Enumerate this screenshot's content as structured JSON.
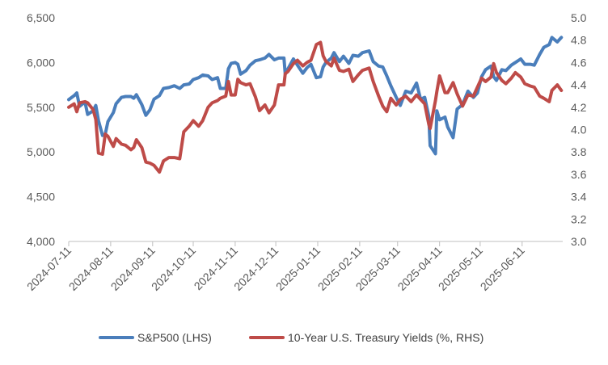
{
  "chart_data": {
    "type": "line",
    "title": "",
    "xlabel": "",
    "ylabel": "",
    "y2label": "",
    "x_ticks": [
      "2024-07-11",
      "2024-08-11",
      "2024-09-11",
      "2024-10-11",
      "2024-11-11",
      "2024-12-11",
      "2025-01-11",
      "2025-02-11",
      "2025-03-11",
      "2025-04-11",
      "2025-05-11",
      "2025-06-11"
    ],
    "ylim_left": [
      4000,
      6500
    ],
    "yticks_left": [
      "4,000",
      "4,500",
      "5,000",
      "5,500",
      "6,000",
      "6,500"
    ],
    "ylim_right": [
      3.0,
      5.0
    ],
    "yticks_right": [
      "3.0",
      "3.2",
      "3.4",
      "3.6",
      "3.8",
      "4.0",
      "4.2",
      "4.4",
      "4.6",
      "4.8",
      "5.0"
    ],
    "grid": false,
    "legend_position": "bottom",
    "series": [
      {
        "name": "S&P500 (LHS)",
        "axis": "left",
        "color": "#4a7ebb",
        "points": [
          [
            "2024-07-11",
            5585
          ],
          [
            "2024-07-15",
            5630
          ],
          [
            "2024-07-17",
            5660
          ],
          [
            "2024-07-19",
            5510
          ],
          [
            "2024-07-23",
            5560
          ],
          [
            "2024-07-25",
            5420
          ],
          [
            "2024-07-29",
            5460
          ],
          [
            "2024-07-31",
            5520
          ],
          [
            "2024-08-02",
            5350
          ],
          [
            "2024-08-05",
            5185
          ],
          [
            "2024-08-07",
            5200
          ],
          [
            "2024-08-09",
            5340
          ],
          [
            "2024-08-13",
            5440
          ],
          [
            "2024-08-15",
            5540
          ],
          [
            "2024-08-19",
            5610
          ],
          [
            "2024-08-22",
            5620
          ],
          [
            "2024-08-26",
            5620
          ],
          [
            "2024-08-28",
            5600
          ],
          [
            "2024-08-30",
            5640
          ],
          [
            "2024-09-03",
            5530
          ],
          [
            "2024-09-06",
            5410
          ],
          [
            "2024-09-09",
            5470
          ],
          [
            "2024-09-12",
            5590
          ],
          [
            "2024-09-16",
            5630
          ],
          [
            "2024-09-19",
            5710
          ],
          [
            "2024-09-23",
            5720
          ],
          [
            "2024-09-27",
            5740
          ],
          [
            "2024-10-01",
            5710
          ],
          [
            "2024-10-04",
            5750
          ],
          [
            "2024-10-08",
            5760
          ],
          [
            "2024-10-11",
            5810
          ],
          [
            "2024-10-15",
            5830
          ],
          [
            "2024-10-18",
            5860
          ],
          [
            "2024-10-22",
            5850
          ],
          [
            "2024-10-25",
            5810
          ],
          [
            "2024-10-29",
            5830
          ],
          [
            "2024-10-31",
            5710
          ],
          [
            "2024-11-04",
            5710
          ],
          [
            "2024-11-06",
            5930
          ],
          [
            "2024-11-08",
            5990
          ],
          [
            "2024-11-11",
            6000
          ],
          [
            "2024-11-13",
            5980
          ],
          [
            "2024-11-15",
            5870
          ],
          [
            "2024-11-19",
            5910
          ],
          [
            "2024-11-22",
            5970
          ],
          [
            "2024-11-26",
            6020
          ],
          [
            "2024-11-29",
            6030
          ],
          [
            "2024-12-03",
            6050
          ],
          [
            "2024-12-06",
            6090
          ],
          [
            "2024-12-10",
            6030
          ],
          [
            "2024-12-13",
            6050
          ],
          [
            "2024-12-17",
            6050
          ],
          [
            "2024-12-18",
            5870
          ],
          [
            "2024-12-20",
            5930
          ],
          [
            "2024-12-24",
            6040
          ],
          [
            "2024-12-27",
            5970
          ],
          [
            "2024-12-31",
            5880
          ],
          [
            "2025-01-03",
            5940
          ],
          [
            "2025-01-06",
            5980
          ],
          [
            "2025-01-10",
            5830
          ],
          [
            "2025-01-13",
            5840
          ],
          [
            "2025-01-15",
            5950
          ],
          [
            "2025-01-17",
            6000
          ],
          [
            "2025-01-21",
            6050
          ],
          [
            "2025-01-23",
            6110
          ],
          [
            "2025-01-27",
            6010
          ],
          [
            "2025-01-30",
            6070
          ],
          [
            "2025-02-03",
            5990
          ],
          [
            "2025-02-06",
            6080
          ],
          [
            "2025-02-10",
            6070
          ],
          [
            "2025-02-13",
            6110
          ],
          [
            "2025-02-18",
            6130
          ],
          [
            "2025-02-21",
            6010
          ],
          [
            "2025-02-25",
            5960
          ],
          [
            "2025-02-28",
            5950
          ],
          [
            "2025-03-03",
            5850
          ],
          [
            "2025-03-06",
            5740
          ],
          [
            "2025-03-10",
            5610
          ],
          [
            "2025-03-13",
            5520
          ],
          [
            "2025-03-17",
            5680
          ],
          [
            "2025-03-21",
            5660
          ],
          [
            "2025-03-25",
            5770
          ],
          [
            "2025-03-28",
            5590
          ],
          [
            "2025-03-31",
            5610
          ],
          [
            "2025-04-03",
            5400
          ],
          [
            "2025-04-04",
            5070
          ],
          [
            "2025-04-08",
            4980
          ],
          [
            "2025-04-09",
            5460
          ],
          [
            "2025-04-11",
            5360
          ],
          [
            "2025-04-15",
            5390
          ],
          [
            "2025-04-17",
            5280
          ],
          [
            "2025-04-21",
            5160
          ],
          [
            "2025-04-24",
            5480
          ],
          [
            "2025-04-28",
            5530
          ],
          [
            "2025-05-02",
            5680
          ],
          [
            "2025-05-06",
            5610
          ],
          [
            "2025-05-09",
            5660
          ],
          [
            "2025-05-12",
            5840
          ],
          [
            "2025-05-15",
            5920
          ],
          [
            "2025-05-19",
            5960
          ],
          [
            "2025-05-21",
            5840
          ],
          [
            "2025-05-23",
            5800
          ],
          [
            "2025-05-27",
            5920
          ],
          [
            "2025-05-30",
            5910
          ],
          [
            "2025-06-03",
            5970
          ],
          [
            "2025-06-06",
            6000
          ],
          [
            "2025-06-10",
            6040
          ],
          [
            "2025-06-13",
            5980
          ],
          [
            "2025-06-17",
            5980
          ],
          [
            "2025-06-20",
            5970
          ],
          [
            "2025-06-24",
            6090
          ],
          [
            "2025-06-27",
            6170
          ],
          [
            "2025-07-01",
            6200
          ],
          [
            "2025-07-03",
            6280
          ],
          [
            "2025-07-07",
            6230
          ],
          [
            "2025-07-10",
            6280
          ]
        ]
      },
      {
        "name": "10-Year U.S. Treasury Yields (%, RHS)",
        "axis": "right",
        "color": "#be4b48",
        "points": [
          [
            "2024-07-11",
            4.2
          ],
          [
            "2024-07-15",
            4.23
          ],
          [
            "2024-07-17",
            4.16
          ],
          [
            "2024-07-19",
            4.24
          ],
          [
            "2024-07-23",
            4.25
          ],
          [
            "2024-07-25",
            4.24
          ],
          [
            "2024-07-29",
            4.18
          ],
          [
            "2024-07-31",
            4.09
          ],
          [
            "2024-08-02",
            3.79
          ],
          [
            "2024-08-05",
            3.78
          ],
          [
            "2024-08-07",
            3.96
          ],
          [
            "2024-08-09",
            3.94
          ],
          [
            "2024-08-13",
            3.85
          ],
          [
            "2024-08-15",
            3.92
          ],
          [
            "2024-08-19",
            3.87
          ],
          [
            "2024-08-22",
            3.86
          ],
          [
            "2024-08-26",
            3.82
          ],
          [
            "2024-08-28",
            3.84
          ],
          [
            "2024-08-30",
            3.91
          ],
          [
            "2024-09-03",
            3.84
          ],
          [
            "2024-09-06",
            3.71
          ],
          [
            "2024-09-09",
            3.7
          ],
          [
            "2024-09-12",
            3.68
          ],
          [
            "2024-09-16",
            3.62
          ],
          [
            "2024-09-19",
            3.72
          ],
          [
            "2024-09-23",
            3.75
          ],
          [
            "2024-09-27",
            3.75
          ],
          [
            "2024-10-01",
            3.74
          ],
          [
            "2024-10-04",
            3.98
          ],
          [
            "2024-10-08",
            4.03
          ],
          [
            "2024-10-11",
            4.08
          ],
          [
            "2024-10-15",
            4.03
          ],
          [
            "2024-10-18",
            4.08
          ],
          [
            "2024-10-22",
            4.2
          ],
          [
            "2024-10-25",
            4.24
          ],
          [
            "2024-10-29",
            4.26
          ],
          [
            "2024-10-31",
            4.28
          ],
          [
            "2024-11-04",
            4.3
          ],
          [
            "2024-11-06",
            4.43
          ],
          [
            "2024-11-08",
            4.31
          ],
          [
            "2024-11-11",
            4.31
          ],
          [
            "2024-11-13",
            4.45
          ],
          [
            "2024-11-15",
            4.42
          ],
          [
            "2024-11-19",
            4.4
          ],
          [
            "2024-11-22",
            4.41
          ],
          [
            "2024-11-26",
            4.29
          ],
          [
            "2024-11-29",
            4.17
          ],
          [
            "2024-12-03",
            4.22
          ],
          [
            "2024-12-06",
            4.15
          ],
          [
            "2024-12-10",
            4.22
          ],
          [
            "2024-12-13",
            4.4
          ],
          [
            "2024-12-17",
            4.4
          ],
          [
            "2024-12-18",
            4.5
          ],
          [
            "2024-12-20",
            4.52
          ],
          [
            "2024-12-24",
            4.59
          ],
          [
            "2024-12-27",
            4.62
          ],
          [
            "2024-12-31",
            4.57
          ],
          [
            "2025-01-03",
            4.6
          ],
          [
            "2025-01-06",
            4.62
          ],
          [
            "2025-01-10",
            4.76
          ],
          [
            "2025-01-13",
            4.78
          ],
          [
            "2025-01-15",
            4.66
          ],
          [
            "2025-01-17",
            4.61
          ],
          [
            "2025-01-21",
            4.57
          ],
          [
            "2025-01-23",
            4.64
          ],
          [
            "2025-01-27",
            4.53
          ],
          [
            "2025-01-30",
            4.52
          ],
          [
            "2025-02-03",
            4.54
          ],
          [
            "2025-02-06",
            4.43
          ],
          [
            "2025-02-10",
            4.49
          ],
          [
            "2025-02-13",
            4.53
          ],
          [
            "2025-02-18",
            4.55
          ],
          [
            "2025-02-21",
            4.43
          ],
          [
            "2025-02-25",
            4.3
          ],
          [
            "2025-02-28",
            4.21
          ],
          [
            "2025-03-03",
            4.16
          ],
          [
            "2025-03-06",
            4.28
          ],
          [
            "2025-03-10",
            4.22
          ],
          [
            "2025-03-13",
            4.27
          ],
          [
            "2025-03-17",
            4.3
          ],
          [
            "2025-03-21",
            4.25
          ],
          [
            "2025-03-25",
            4.31
          ],
          [
            "2025-03-28",
            4.27
          ],
          [
            "2025-03-31",
            4.23
          ],
          [
            "2025-04-03",
            4.05
          ],
          [
            "2025-04-04",
            4.01
          ],
          [
            "2025-04-08",
            4.26
          ],
          [
            "2025-04-09",
            4.34
          ],
          [
            "2025-04-11",
            4.48
          ],
          [
            "2025-04-15",
            4.33
          ],
          [
            "2025-04-17",
            4.33
          ],
          [
            "2025-04-21",
            4.42
          ],
          [
            "2025-04-24",
            4.32
          ],
          [
            "2025-04-28",
            4.21
          ],
          [
            "2025-05-02",
            4.31
          ],
          [
            "2025-05-06",
            4.3
          ],
          [
            "2025-05-09",
            4.38
          ],
          [
            "2025-05-12",
            4.46
          ],
          [
            "2025-05-15",
            4.43
          ],
          [
            "2025-05-19",
            4.47
          ],
          [
            "2025-05-21",
            4.59
          ],
          [
            "2025-05-23",
            4.51
          ],
          [
            "2025-05-27",
            4.44
          ],
          [
            "2025-05-30",
            4.41
          ],
          [
            "2025-06-03",
            4.46
          ],
          [
            "2025-06-06",
            4.51
          ],
          [
            "2025-06-10",
            4.47
          ],
          [
            "2025-06-13",
            4.41
          ],
          [
            "2025-06-17",
            4.39
          ],
          [
            "2025-06-20",
            4.38
          ],
          [
            "2025-06-24",
            4.3
          ],
          [
            "2025-06-27",
            4.28
          ],
          [
            "2025-07-01",
            4.25
          ],
          [
            "2025-07-03",
            4.35
          ],
          [
            "2025-07-07",
            4.4
          ],
          [
            "2025-07-10",
            4.35
          ]
        ]
      }
    ]
  }
}
